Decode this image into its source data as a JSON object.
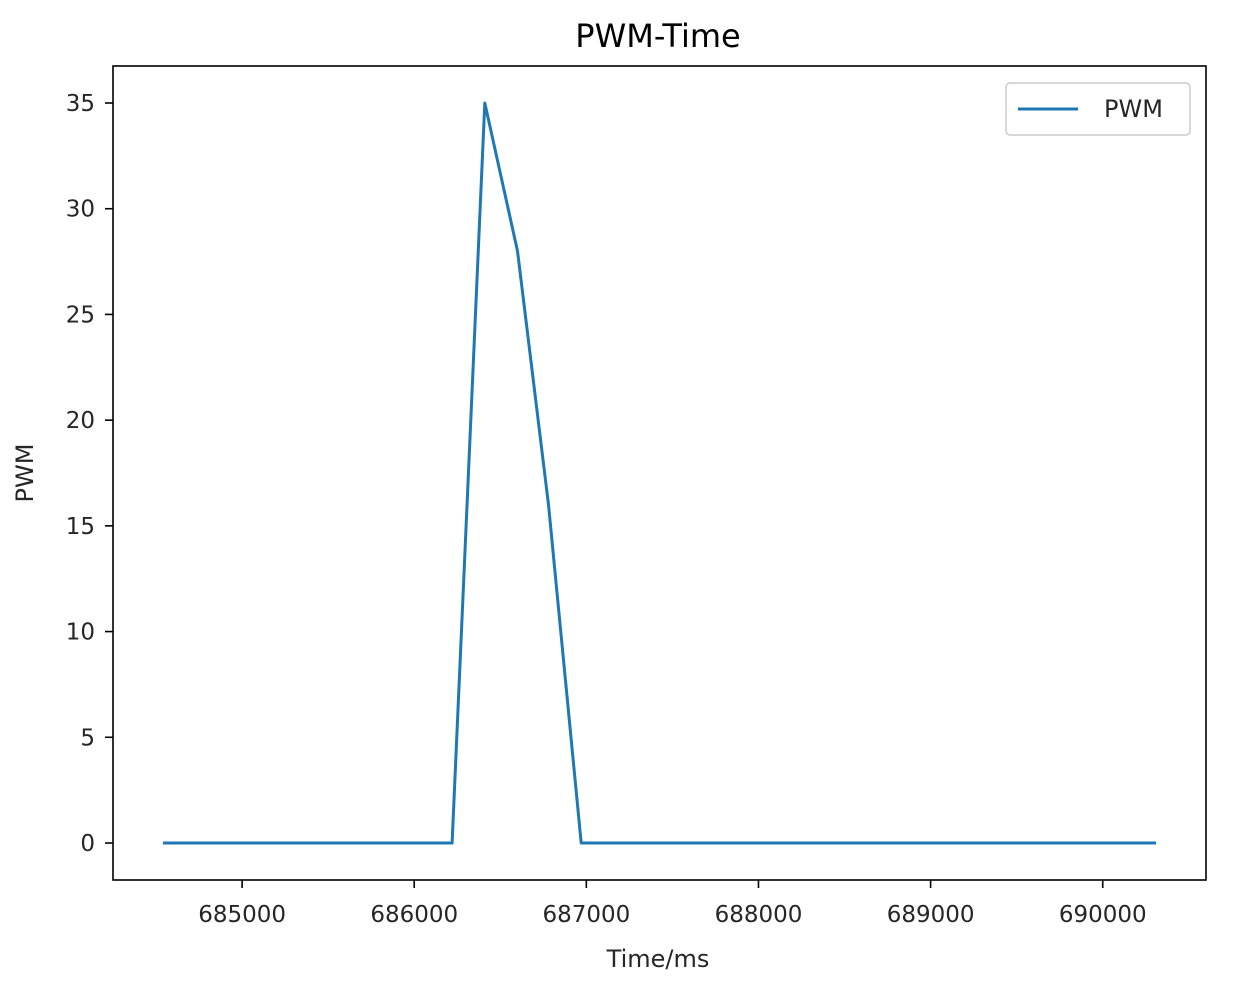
{
  "chart_data": {
    "type": "line",
    "title": "PWM-Time",
    "xlabel": "Time/ms",
    "ylabel": "PWM",
    "xlim": [
      684250,
      690600
    ],
    "ylim": [
      -1.75,
      36.75
    ],
    "x_ticks": [
      685000,
      686000,
      687000,
      688000,
      689000,
      690000
    ],
    "y_ticks": [
      0,
      5,
      10,
      15,
      20,
      25,
      30,
      35
    ],
    "grid": false,
    "legend_position": "top-right",
    "series": [
      {
        "name": "PWM",
        "color": "#1f77b4",
        "x": [
          684540,
          686220,
          686410,
          686600,
          686780,
          686970,
          690310
        ],
        "y": [
          0,
          0,
          35,
          28,
          16,
          0,
          0
        ]
      }
    ]
  }
}
